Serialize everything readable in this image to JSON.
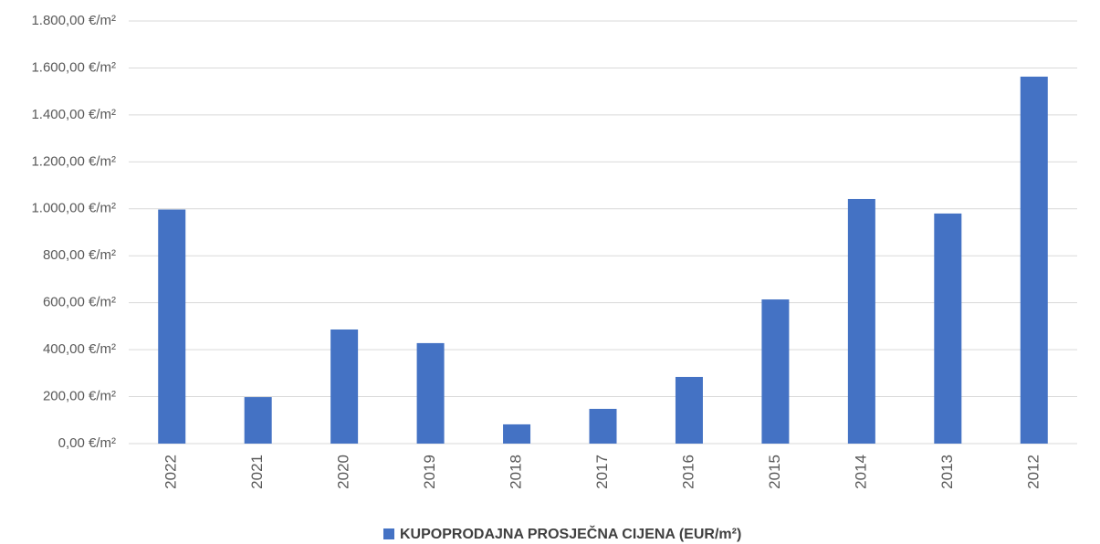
{
  "chart_data": {
    "type": "bar",
    "categories": [
      "2022",
      "2021",
      "2020",
      "2019",
      "2018",
      "2017",
      "2016",
      "2015",
      "2014",
      "2013",
      "2012"
    ],
    "series": [
      {
        "name": "KUPOPRODAJNA PROSJEČNA CIJENA (EUR/m²)",
        "color": "#4472c4",
        "values": [
          997,
          198,
          486,
          428,
          82,
          148,
          284,
          614,
          1042,
          980,
          1563
        ]
      }
    ],
    "ylim": [
      0,
      1800
    ],
    "yticks": [
      {
        "value": 0,
        "label": "0,00 €/m²"
      },
      {
        "value": 200,
        "label": "200,00 €/m²"
      },
      {
        "value": 400,
        "label": "400,00 €/m²"
      },
      {
        "value": 600,
        "label": "600,00 €/m²"
      },
      {
        "value": 800,
        "label": "800,00 €/m²"
      },
      {
        "value": 1000,
        "label": "1.000,00 €/m²"
      },
      {
        "value": 1200,
        "label": "1.200,00 €/m²"
      },
      {
        "value": 1400,
        "label": "1.400,00 €/m²"
      },
      {
        "value": 1600,
        "label": "1.600,00 €/m²"
      },
      {
        "value": 1800,
        "label": "1.800,00 €/m²"
      }
    ],
    "grid": true,
    "legend": "bottom"
  }
}
